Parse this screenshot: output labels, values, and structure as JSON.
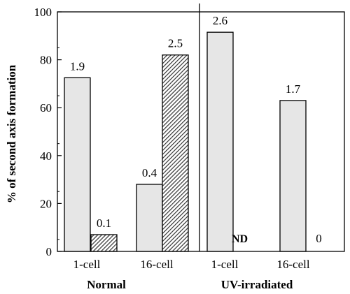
{
  "chart_data": {
    "type": "bar",
    "ylabel": "% of second axis formation",
    "ylim": [
      0,
      100
    ],
    "yticks": [
      0,
      20,
      40,
      60,
      80,
      100
    ],
    "grid": false,
    "legend": "none",
    "groups": [
      {
        "name": "Normal",
        "categories": [
          {
            "label": "1-cell",
            "bars": [
              {
                "value": 72.5,
                "label": "1.9",
                "fill": "plain"
              },
              {
                "value": 7,
                "label": "0.1",
                "fill": "hatched"
              }
            ]
          },
          {
            "label": "16-cell",
            "bars": [
              {
                "value": 28,
                "label": "0.4",
                "fill": "plain"
              },
              {
                "value": 82,
                "label": "2.5",
                "fill": "hatched"
              }
            ]
          }
        ]
      },
      {
        "name": "UV-irradiated",
        "categories": [
          {
            "label": "1-cell",
            "bars": [
              {
                "value": 91.5,
                "label": "2.6",
                "fill": "plain"
              },
              {
                "value": null,
                "label": "ND",
                "fill": "hatched"
              }
            ]
          },
          {
            "label": "16-cell",
            "bars": [
              {
                "value": 63,
                "label": "1.7",
                "fill": "plain"
              },
              {
                "value": 0,
                "label": "0",
                "fill": "hatched"
              }
            ]
          }
        ]
      }
    ],
    "colors": {
      "plain_fill": "#e6e6e6",
      "hatched_fill": "#555555",
      "stroke": "#000000"
    }
  }
}
